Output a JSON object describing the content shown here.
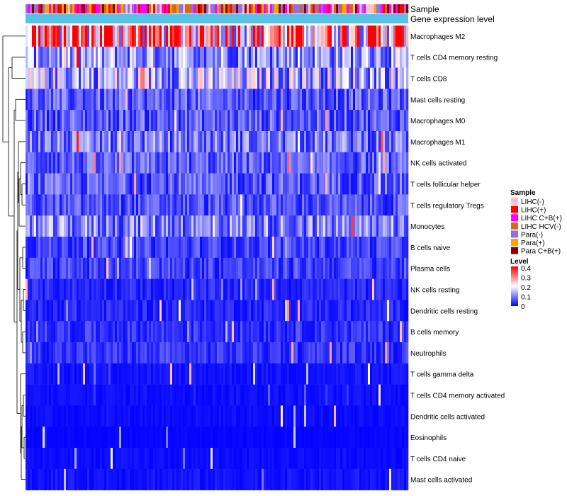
{
  "chart_data": {
    "type": "heatmap",
    "annotation_labels": [
      "Sample",
      "Gene expression level"
    ],
    "rows": [
      {
        "name": "Macrophages M2",
        "mean": 0.3
      },
      {
        "name": "T cells CD4 memory resting",
        "mean": 0.12
      },
      {
        "name": "T cells CD8",
        "mean": 0.14
      },
      {
        "name": "Mast cells resting",
        "mean": 0.07
      },
      {
        "name": "Macrophages M0",
        "mean": 0.07
      },
      {
        "name": "Macrophages M1",
        "mean": 0.09
      },
      {
        "name": "NK cells activated",
        "mean": 0.07
      },
      {
        "name": "T cells follicular helper",
        "mean": 0.07
      },
      {
        "name": "T cells regulatory  Tregs",
        "mean": 0.06
      },
      {
        "name": "Monocytes",
        "mean": 0.1
      },
      {
        "name": "B cells naive",
        "mean": 0.05
      },
      {
        "name": "Plasma cells",
        "mean": 0.05
      },
      {
        "name": "NK cells resting",
        "mean": 0.03
      },
      {
        "name": "Dendritic cells resting",
        "mean": 0.03
      },
      {
        "name": "B cells memory",
        "mean": 0.04
      },
      {
        "name": "Neutrophils",
        "mean": 0.04
      },
      {
        "name": "T cells gamma delta",
        "mean": 0.015
      },
      {
        "name": "T cells CD4 memory activated",
        "mean": 0.012
      },
      {
        "name": "Dendritic cells activated",
        "mean": 0.01
      },
      {
        "name": "Eosinophils",
        "mean": 0.005
      },
      {
        "name": "T cells CD4 naive",
        "mean": 0.01
      },
      {
        "name": "Mast cells activated",
        "mean": 0.015
      }
    ],
    "n_samples": 180,
    "legend_sample": {
      "title": "Sample",
      "entries": [
        {
          "label": "LIHC(-)",
          "color": "#ffc0cb"
        },
        {
          "label": "LIHC(+)",
          "color": "#ff0000"
        },
        {
          "label": "LIHC C+B(+)",
          "color": "#ff00ff"
        },
        {
          "label": "LIHC HCV(-)",
          "color": "#d2691e"
        },
        {
          "label": "Para(-)",
          "color": "#9370db"
        },
        {
          "label": "Para(+)",
          "color": "#ffa500"
        },
        {
          "label": "Para C+B(+)",
          "color": "#8b0000"
        }
      ]
    },
    "legend_level": {
      "title": "Level",
      "ticks": [
        "0.4",
        "0.3",
        "0.2",
        "0.1",
        "0"
      ],
      "range": [
        0,
        0.4
      ],
      "colors": [
        "#0000ff",
        "#ffffff",
        "#ff0000"
      ]
    },
    "gene_expression_bar_color": "#5bc0e8"
  }
}
